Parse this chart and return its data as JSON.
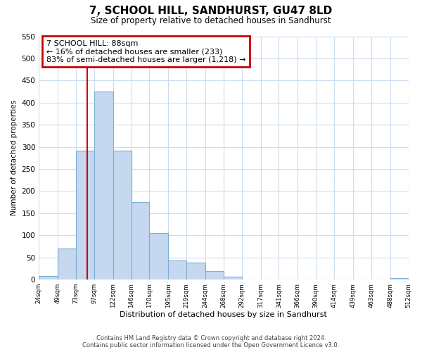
{
  "title": "7, SCHOOL HILL, SANDHURST, GU47 8LD",
  "subtitle": "Size of property relative to detached houses in Sandhurst",
  "bar_values": [
    8,
    70,
    292,
    425,
    291,
    175,
    106,
    44,
    38,
    20,
    7,
    0,
    0,
    1,
    0,
    0,
    0,
    0,
    0,
    3
  ],
  "bin_edges": [
    24,
    49,
    73,
    97,
    122,
    146,
    170,
    195,
    219,
    244,
    268,
    292,
    317,
    341,
    366,
    390,
    414,
    439,
    463,
    488,
    512
  ],
  "tick_labels": [
    "24sqm",
    "49sqm",
    "73sqm",
    "97sqm",
    "122sqm",
    "146sqm",
    "170sqm",
    "195sqm",
    "219sqm",
    "244sqm",
    "268sqm",
    "292sqm",
    "317sqm",
    "341sqm",
    "366sqm",
    "390sqm",
    "414sqm",
    "439sqm",
    "463sqm",
    "488sqm",
    "512sqm"
  ],
  "xlabel": "Distribution of detached houses by size in Sandhurst",
  "ylabel": "Number of detached properties",
  "ylim": [
    0,
    550
  ],
  "yticks": [
    0,
    50,
    100,
    150,
    200,
    250,
    300,
    350,
    400,
    450,
    500,
    550
  ],
  "bar_color": "#c5d8ef",
  "bar_edge_color": "#7bafd4",
  "property_line_x": 88,
  "property_line_color": "#cc0000",
  "annotation_text": "7 SCHOOL HILL: 88sqm\n← 16% of detached houses are smaller (233)\n83% of semi-detached houses are larger (1,218) →",
  "annotation_box_color": "#ffffff",
  "annotation_box_edge": "#cc0000",
  "footer_line1": "Contains HM Land Registry data © Crown copyright and database right 2024.",
  "footer_line2": "Contains public sector information licensed under the Open Government Licence v3.0.",
  "background_color": "#ffffff",
  "grid_color": "#ccddee"
}
